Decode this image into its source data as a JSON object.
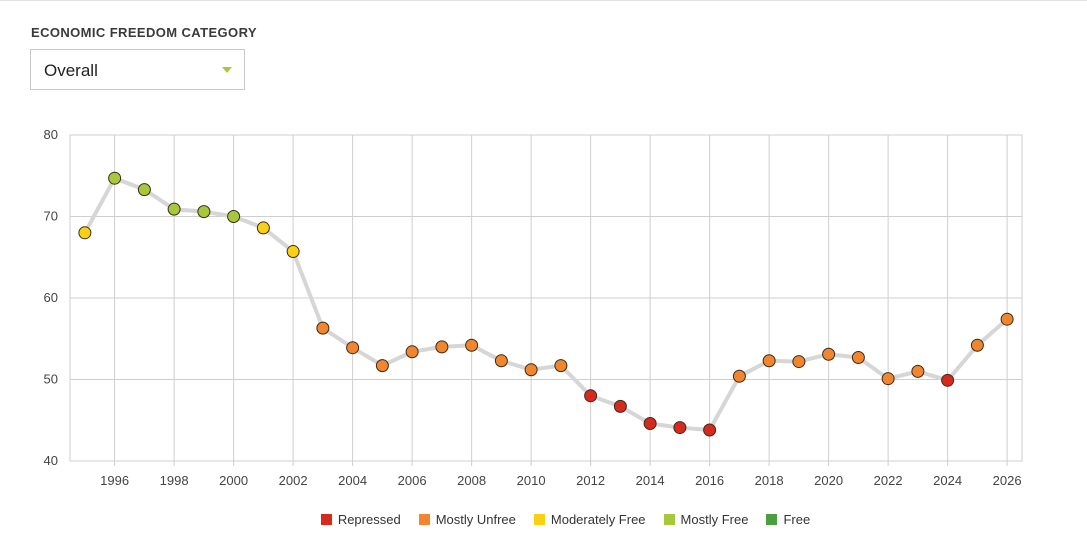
{
  "filter": {
    "label": "ECONOMIC FREEDOM CATEGORY",
    "selected": "Overall"
  },
  "categories_legend": [
    {
      "name": "Repressed",
      "color": "#d52b1e"
    },
    {
      "name": "Mostly Unfree",
      "color": "#f0862f"
    },
    {
      "name": "Moderately Free",
      "color": "#f9d112"
    },
    {
      "name": "Mostly Free",
      "color": "#a5c93a"
    },
    {
      "name": "Free",
      "color": "#4aa03f"
    }
  ],
  "chart_data": {
    "type": "line",
    "title": "",
    "xlabel": "",
    "ylabel": "",
    "ylim": [
      40,
      80
    ],
    "yticks": [
      40,
      50,
      60,
      70,
      80
    ],
    "xlim": [
      1994.5,
      2026.5
    ],
    "xticks": [
      1996,
      1998,
      2000,
      2002,
      2004,
      2006,
      2008,
      2010,
      2012,
      2014,
      2016,
      2018,
      2020,
      2022,
      2024,
      2026
    ],
    "grid": true,
    "legend_position": "bottom",
    "series": [
      {
        "x": [
          1995,
          1996,
          1997,
          1998,
          1999,
          2000,
          2001,
          2002,
          2003,
          2004,
          2005,
          2006,
          2007,
          2008,
          2009,
          2010,
          2011,
          2012,
          2013,
          2014,
          2015,
          2016,
          2017,
          2018,
          2019,
          2020,
          2021,
          2022,
          2023,
          2024,
          2025,
          2026
        ],
        "values": [
          68.0,
          74.7,
          73.3,
          70.9,
          70.6,
          70.0,
          68.6,
          65.7,
          56.3,
          53.9,
          51.7,
          53.4,
          54.0,
          54.2,
          52.3,
          51.2,
          51.7,
          48.0,
          46.7,
          44.6,
          44.1,
          43.8,
          50.4,
          52.3,
          52.2,
          53.1,
          52.7,
          50.1,
          51.0,
          49.9,
          54.2,
          57.4
        ],
        "category": [
          "Moderately Free",
          "Mostly Free",
          "Mostly Free",
          "Mostly Free",
          "Mostly Free",
          "Mostly Free",
          "Moderately Free",
          "Moderately Free",
          "Mostly Unfree",
          "Mostly Unfree",
          "Mostly Unfree",
          "Mostly Unfree",
          "Mostly Unfree",
          "Mostly Unfree",
          "Mostly Unfree",
          "Mostly Unfree",
          "Mostly Unfree",
          "Repressed",
          "Repressed",
          "Repressed",
          "Repressed",
          "Repressed",
          "Mostly Unfree",
          "Mostly Unfree",
          "Mostly Unfree",
          "Mostly Unfree",
          "Mostly Unfree",
          "Mostly Unfree",
          "Mostly Unfree",
          "Repressed",
          "Mostly Unfree",
          "Mostly Unfree"
        ]
      }
    ]
  }
}
